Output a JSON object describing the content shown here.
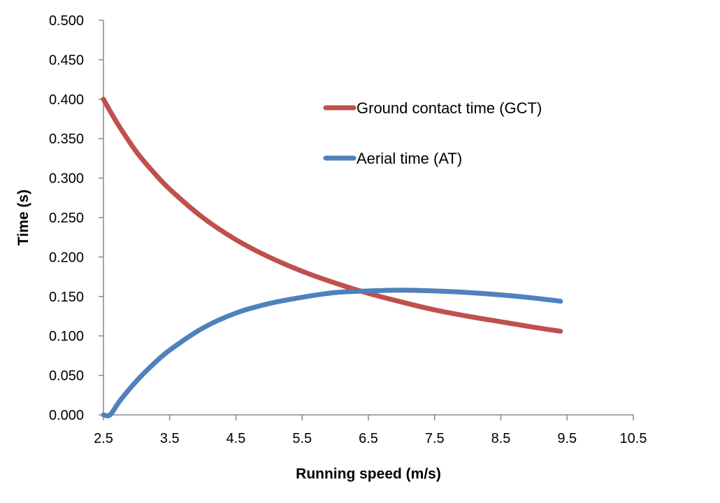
{
  "chart_data": {
    "type": "line",
    "title": "",
    "xlabel": "Running speed (m/s)",
    "ylabel": "Time (s)",
    "xlim": [
      2.5,
      10.5
    ],
    "ylim": [
      0,
      0.5
    ],
    "x_ticks": [
      "2.5",
      "3.5",
      "4.5",
      "5.5",
      "6.5",
      "7.5",
      "8.5",
      "9.5",
      "10.5"
    ],
    "y_ticks": [
      "0.000",
      "0.050",
      "0.100",
      "0.150",
      "0.200",
      "0.250",
      "0.300",
      "0.350",
      "0.400",
      "0.450",
      "0.500"
    ],
    "grid": false,
    "legend_placement": "top-right",
    "x": [
      2.5,
      2.6,
      2.75,
      3.0,
      3.25,
      3.5,
      4.0,
      4.5,
      5.0,
      5.5,
      6.0,
      6.5,
      7.0,
      7.5,
      8.0,
      8.5,
      9.0,
      9.4
    ],
    "series": [
      {
        "name": "Ground contact time (GCT)",
        "color": "#C0504D",
        "values": [
          0.4,
          0.385,
          0.364,
          0.333,
          0.308,
          0.286,
          0.25,
          0.222,
          0.2,
          0.182,
          0.167,
          0.154,
          0.143,
          0.133,
          0.125,
          0.118,
          0.111,
          0.106
        ]
      },
      {
        "name": "Aerial time (AT)",
        "color": "#4F81BD",
        "values": [
          0.0,
          0.0,
          0.018,
          0.043,
          0.064,
          0.082,
          0.11,
          0.129,
          0.141,
          0.149,
          0.155,
          0.157,
          0.158,
          0.157,
          0.155,
          0.152,
          0.148,
          0.144
        ]
      }
    ]
  }
}
